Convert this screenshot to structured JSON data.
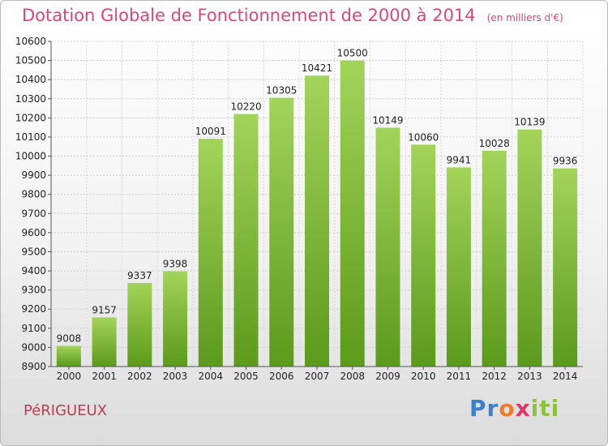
{
  "title": "Dotation Globale de Fonctionnement de 2000 à 2014",
  "unit": "(en milliers d'€)",
  "city": "PéRIGUEUX",
  "logo": {
    "p1": "Pr",
    "p2": "o",
    "p3": "x",
    "p4": "iti"
  },
  "colors": {
    "bar_light": "#9fd056",
    "bar_dark": "#5b9a1a",
    "title": "#e0447a",
    "grid": "#cfcfcf"
  },
  "chart_data": {
    "type": "bar",
    "categories": [
      "2000",
      "2001",
      "2002",
      "2003",
      "2004",
      "2005",
      "2006",
      "2007",
      "2008",
      "2009",
      "2010",
      "2011",
      "2012",
      "2013",
      "2014"
    ],
    "values": [
      9008,
      9157,
      9337,
      9398,
      10091,
      10220,
      10305,
      10421,
      10500,
      10149,
      10060,
      9941,
      10028,
      10139,
      9936
    ],
    "ylim": [
      8900,
      10600
    ],
    "yticks": [
      8900,
      9000,
      9100,
      9200,
      9300,
      9400,
      9500,
      9600,
      9700,
      9800,
      9900,
      10000,
      10100,
      10200,
      10300,
      10400,
      10500,
      10600
    ],
    "grid": true,
    "xlabel": "",
    "ylabel": ""
  }
}
